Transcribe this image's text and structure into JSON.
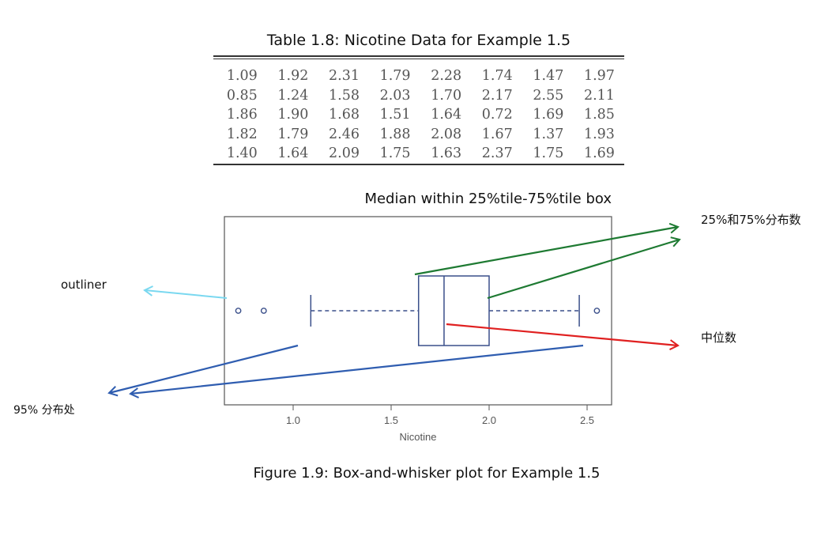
{
  "table": {
    "title": "Table 1.8: Nicotine Data for Example 1.5",
    "rows": [
      [
        "1.09",
        "1.92",
        "2.31",
        "1.79",
        "2.28",
        "1.74",
        "1.47",
        "1.97"
      ],
      [
        "0.85",
        "1.24",
        "1.58",
        "2.03",
        "1.70",
        "2.17",
        "2.55",
        "2.11"
      ],
      [
        "1.86",
        "1.90",
        "1.68",
        "1.51",
        "1.64",
        "0.72",
        "1.69",
        "1.85"
      ],
      [
        "1.82",
        "1.79",
        "2.46",
        "1.88",
        "2.08",
        "1.67",
        "1.37",
        "1.93"
      ],
      [
        "1.40",
        "1.64",
        "2.09",
        "1.75",
        "1.63",
        "2.37",
        "1.75",
        "1.69"
      ]
    ]
  },
  "plot_title": "Median within 25%tile-75%tile box",
  "caption": "Figure 1.9: Box-and-whisker plot for Example 1.5",
  "annotations": {
    "outliner": "outliner",
    "quartiles": "25%和75%分布数",
    "median": "中位数",
    "whiskers": "95% 分布处"
  },
  "colors": {
    "box": "#3a4f8a",
    "outliner_arrow": "#7ad8f0",
    "quartile_arrow": "#1e7a32",
    "median_arrow": "#e02020",
    "whisker_arrow": "#2f5db0"
  },
  "chart_data": {
    "type": "boxplot",
    "orientation": "horizontal",
    "xlabel": "Nicotine",
    "xticks": [
      1.0,
      1.5,
      2.0,
      2.5
    ],
    "xtick_labels": [
      "1.0",
      "1.5",
      "2.0",
      "2.5"
    ],
    "xlim": [
      0.65,
      2.62
    ],
    "q1": 1.64,
    "median": 1.77,
    "q3": 2.0,
    "whisker_low": 1.09,
    "whisker_high": 2.46,
    "outliers": [
      0.72,
      0.85,
      2.55
    ]
  }
}
